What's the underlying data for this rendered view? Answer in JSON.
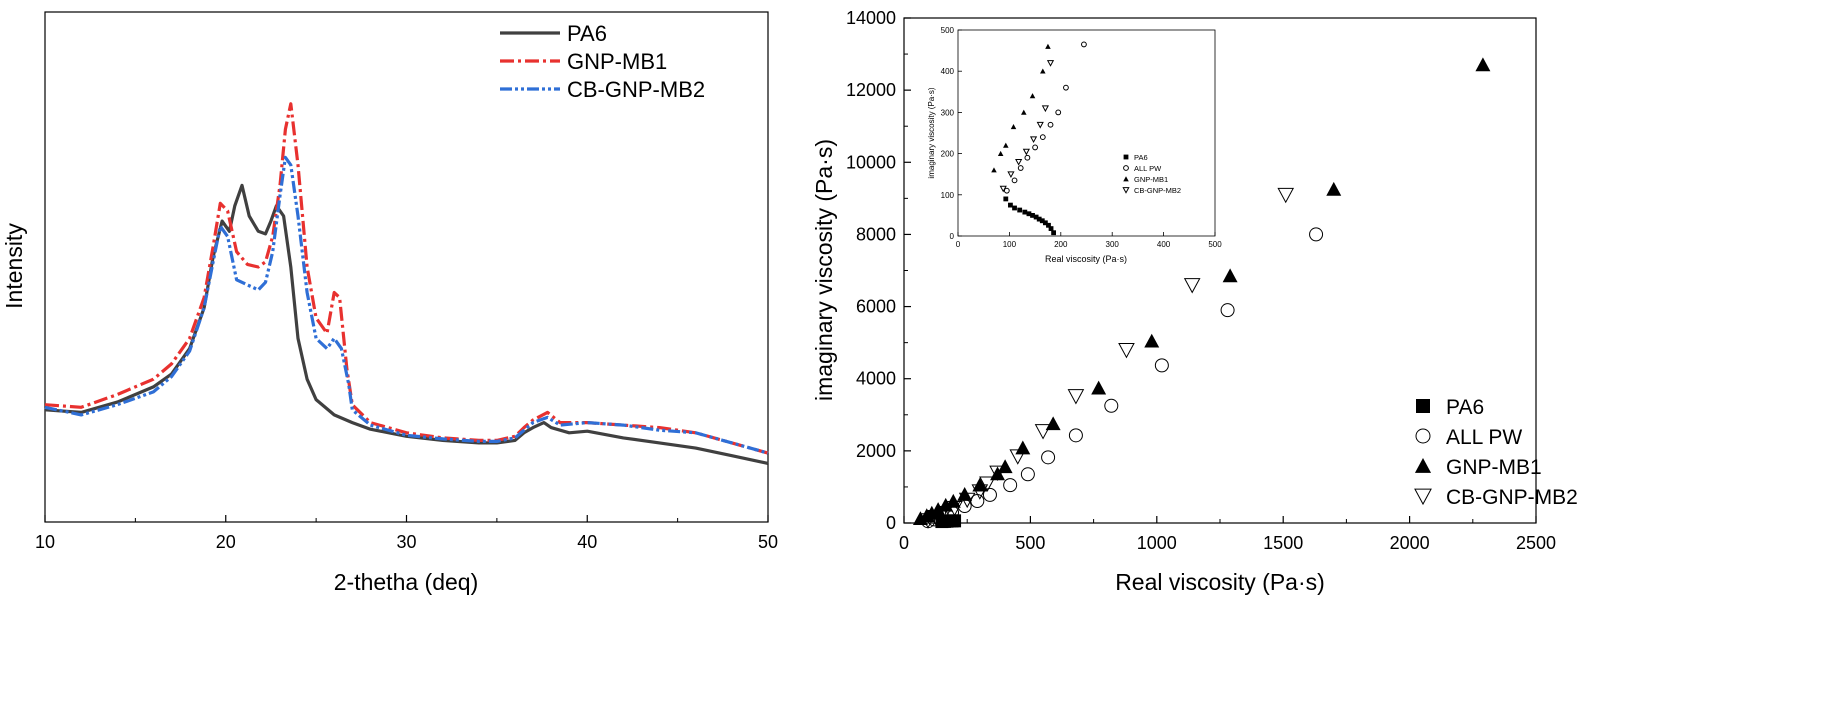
{
  "chart_data": [
    {
      "type": "line",
      "title": "",
      "xlabel": "2-thetha (deq)",
      "ylabel": "Intensity",
      "xlim": [
        10,
        50
      ],
      "ylim": [
        0,
        100
      ],
      "y_ticks_shown": false,
      "x_ticks": [
        10,
        20,
        30,
        40,
        50
      ],
      "legend_position": "top-right",
      "series": [
        {
          "name": "PA6",
          "color": "#404040",
          "style": "solid",
          "points": [
            [
              10,
              22
            ],
            [
              12,
              21.5
            ],
            [
              14,
              23.5
            ],
            [
              16,
              26.5
            ],
            [
              17,
              29
            ],
            [
              18,
              34
            ],
            [
              18.8,
              42
            ],
            [
              19.3,
              52
            ],
            [
              19.8,
              59
            ],
            [
              20.2,
              57
            ],
            [
              20.5,
              62
            ],
            [
              20.9,
              66
            ],
            [
              21.3,
              60
            ],
            [
              21.8,
              57
            ],
            [
              22.2,
              56.5
            ],
            [
              22.5,
              59
            ],
            [
              22.8,
              62
            ],
            [
              23.2,
              60
            ],
            [
              23.6,
              50
            ],
            [
              24,
              36
            ],
            [
              24.5,
              28
            ],
            [
              25,
              24
            ],
            [
              26,
              21
            ],
            [
              27,
              19.5
            ],
            [
              28,
              18.2
            ],
            [
              30,
              16.8
            ],
            [
              32,
              16
            ],
            [
              34,
              15.5
            ],
            [
              35,
              15.5
            ],
            [
              36,
              16
            ],
            [
              36.5,
              17.5
            ],
            [
              37,
              18.5
            ],
            [
              37.6,
              19.5
            ],
            [
              38,
              18.5
            ],
            [
              39,
              17.5
            ],
            [
              40,
              17.8
            ],
            [
              42,
              16.5
            ],
            [
              44,
              15.5
            ],
            [
              46,
              14.5
            ],
            [
              48,
              13
            ],
            [
              50,
              11.5
            ]
          ]
        },
        {
          "name": "GNP-MB1",
          "color": "#e8312f",
          "style": "dash-dot",
          "points": [
            [
              10,
              23
            ],
            [
              12,
              22.5
            ],
            [
              14,
              25
            ],
            [
              16,
              28
            ],
            [
              17,
              31
            ],
            [
              18,
              36
            ],
            [
              18.8,
              44
            ],
            [
              19.3,
              54
            ],
            [
              19.7,
              62.5
            ],
            [
              20.1,
              61
            ],
            [
              20.6,
              53
            ],
            [
              21.2,
              50.5
            ],
            [
              21.8,
              50
            ],
            [
              22.2,
              51
            ],
            [
              22.6,
              56
            ],
            [
              23,
              66
            ],
            [
              23.3,
              77
            ],
            [
              23.6,
              82
            ],
            [
              24,
              70
            ],
            [
              24.5,
              50
            ],
            [
              25,
              40
            ],
            [
              25.6,
              37
            ],
            [
              26,
              45
            ],
            [
              26.3,
              44
            ],
            [
              26.7,
              30
            ],
            [
              27,
              23
            ],
            [
              28,
              19.5
            ],
            [
              30,
              17.5
            ],
            [
              32,
              16.5
            ],
            [
              34,
              16
            ],
            [
              35,
              16
            ],
            [
              36,
              16.8
            ],
            [
              36.5,
              18.5
            ],
            [
              37,
              20
            ],
            [
              37.8,
              21.5
            ],
            [
              38.5,
              19.5
            ],
            [
              40,
              19.5
            ],
            [
              42,
              19
            ],
            [
              44,
              18.5
            ],
            [
              46,
              17.5
            ],
            [
              48,
              15.5
            ],
            [
              50,
              13.5
            ]
          ]
        },
        {
          "name": "CB-GNP-MB2",
          "color": "#2f6fd6",
          "style": "dash-dot-dot",
          "points": [
            [
              10,
              22.5
            ],
            [
              12,
              21
            ],
            [
              14,
              23
            ],
            [
              16,
              25.5
            ],
            [
              17,
              28.5
            ],
            [
              18,
              33.5
            ],
            [
              18.8,
              42
            ],
            [
              19.3,
              51
            ],
            [
              19.7,
              58
            ],
            [
              20.1,
              56
            ],
            [
              20.6,
              47.5
            ],
            [
              21.2,
              46.5
            ],
            [
              21.8,
              45.5
            ],
            [
              22.2,
              47
            ],
            [
              22.6,
              53
            ],
            [
              23,
              64
            ],
            [
              23.3,
              71.5
            ],
            [
              23.6,
              70
            ],
            [
              24,
              60
            ],
            [
              24.5,
              45
            ],
            [
              25,
              36
            ],
            [
              25.6,
              34
            ],
            [
              26,
              36
            ],
            [
              26.4,
              34
            ],
            [
              26.8,
              27
            ],
            [
              27,
              22
            ],
            [
              28,
              19
            ],
            [
              30,
              17
            ],
            [
              32,
              16.3
            ],
            [
              34,
              15.8
            ],
            [
              35,
              15.8
            ],
            [
              36,
              16.5
            ],
            [
              36.5,
              18
            ],
            [
              37,
              19.5
            ],
            [
              37.8,
              20.5
            ],
            [
              38.5,
              19
            ],
            [
              40,
              19.5
            ],
            [
              42,
              19
            ],
            [
              44,
              18
            ],
            [
              46,
              17.5
            ],
            [
              48,
              15.5
            ],
            [
              50,
              13.5
            ]
          ]
        }
      ]
    },
    {
      "type": "scatter",
      "title": "",
      "xlabel": "Real viscosity (Pa·s)",
      "ylabel": "imaginary viscosity (Pa·s)",
      "xlim": [
        0,
        2500
      ],
      "ylim": [
        0,
        14000
      ],
      "x_ticks": [
        0,
        500,
        1000,
        1500,
        2000,
        2500
      ],
      "y_ticks": [
        0,
        2000,
        4000,
        6000,
        8000,
        10000,
        12000,
        14000
      ],
      "legend_position": "bottom-right",
      "series": [
        {
          "name": "PA6",
          "marker": "filled-square",
          "points": [
            [
              150,
              40
            ],
            [
              160,
              45
            ],
            [
              170,
              50
            ],
            [
              180,
              55
            ],
            [
              190,
              58
            ],
            [
              200,
              60
            ]
          ]
        },
        {
          "name": "ALL PW",
          "marker": "open-circle",
          "points": [
            [
              95,
              50
            ],
            [
              120,
              100
            ],
            [
              150,
              180
            ],
            [
              190,
              290
            ],
            [
              240,
              470
            ],
            [
              290,
              610
            ],
            [
              340,
              780
            ],
            [
              420,
              1050
            ],
            [
              490,
              1350
            ],
            [
              570,
              1820
            ],
            [
              680,
              2430
            ],
            [
              820,
              3250
            ],
            [
              1020,
              4370
            ],
            [
              1280,
              5900
            ],
            [
              1630,
              8000
            ]
          ]
        },
        {
          "name": "GNP-MB1",
          "marker": "filled-triangle",
          "points": [
            [
              65,
              120
            ],
            [
              90,
              200
            ],
            [
              110,
              270
            ],
            [
              135,
              370
            ],
            [
              165,
              490
            ],
            [
              195,
              600
            ],
            [
              240,
              790
            ],
            [
              300,
              1050
            ],
            [
              370,
              1360
            ],
            [
              400,
              1560
            ],
            [
              470,
              2080
            ],
            [
              590,
              2750
            ],
            [
              770,
              3740
            ],
            [
              980,
              5040
            ],
            [
              1290,
              6850
            ],
            [
              1700,
              9250
            ],
            [
              2290,
              12700
            ]
          ]
        },
        {
          "name": "CB-GNP-MB2",
          "marker": "open-triangle-down",
          "points": [
            [
              95,
              80
            ],
            [
              125,
              170
            ],
            [
              160,
              280
            ],
            [
              200,
              420
            ],
            [
              250,
              650
            ],
            [
              300,
              880
            ],
            [
              330,
              1100
            ],
            [
              370,
              1400
            ],
            [
              450,
              1850
            ],
            [
              550,
              2550
            ],
            [
              680,
              3520
            ],
            [
              880,
              4800
            ],
            [
              1140,
              6600
            ],
            [
              1510,
              9100
            ]
          ]
        }
      ],
      "inset": {
        "type": "scatter",
        "xlabel": "Real viscosity (Pa·s)",
        "ylabel": "imaginary viscosity (Pa·s)",
        "xlim": [
          0,
          500
        ],
        "ylim": [
          0,
          500
        ],
        "x_ticks": [
          0,
          100,
          200,
          300,
          400,
          500
        ],
        "y_ticks": [
          0,
          100,
          200,
          300,
          400,
          500
        ],
        "legend_position": "bottom-right",
        "series": [
          {
            "name": "PA6",
            "points": [
              [
                93,
                90
              ],
              [
                102,
                75
              ],
              [
                110,
                68
              ],
              [
                120,
                63
              ],
              [
                130,
                58
              ],
              [
                138,
                54
              ],
              [
                145,
                50
              ],
              [
                152,
                46
              ],
              [
                158,
                41
              ],
              [
                164,
                37
              ],
              [
                170,
                32
              ],
              [
                176,
                26
              ],
              [
                181,
                18
              ],
              [
                186,
                8
              ]
            ]
          },
          {
            "name": "ALL PW",
            "points": [
              [
                95,
                110
              ],
              [
                110,
                135
              ],
              [
                122,
                165
              ],
              [
                135,
                190
              ],
              [
                150,
                215
              ],
              [
                165,
                240
              ],
              [
                180,
                270
              ],
              [
                195,
                300
              ],
              [
                210,
                360
              ],
              [
                245,
                465
              ]
            ]
          },
          {
            "name": "GNP-MB1",
            "points": [
              [
                70,
                160
              ],
              [
                83,
                200
              ],
              [
                93,
                220
              ],
              [
                108,
                265
              ],
              [
                128,
                300
              ],
              [
                145,
                340
              ],
              [
                165,
                400
              ],
              [
                175,
                460
              ]
            ]
          },
          {
            "name": "CB-GNP-MB2",
            "points": [
              [
                88,
                115
              ],
              [
                103,
                150
              ],
              [
                118,
                180
              ],
              [
                133,
                205
              ],
              [
                147,
                235
              ],
              [
                160,
                270
              ],
              [
                170,
                310
              ],
              [
                180,
                420
              ]
            ]
          }
        ]
      }
    }
  ]
}
